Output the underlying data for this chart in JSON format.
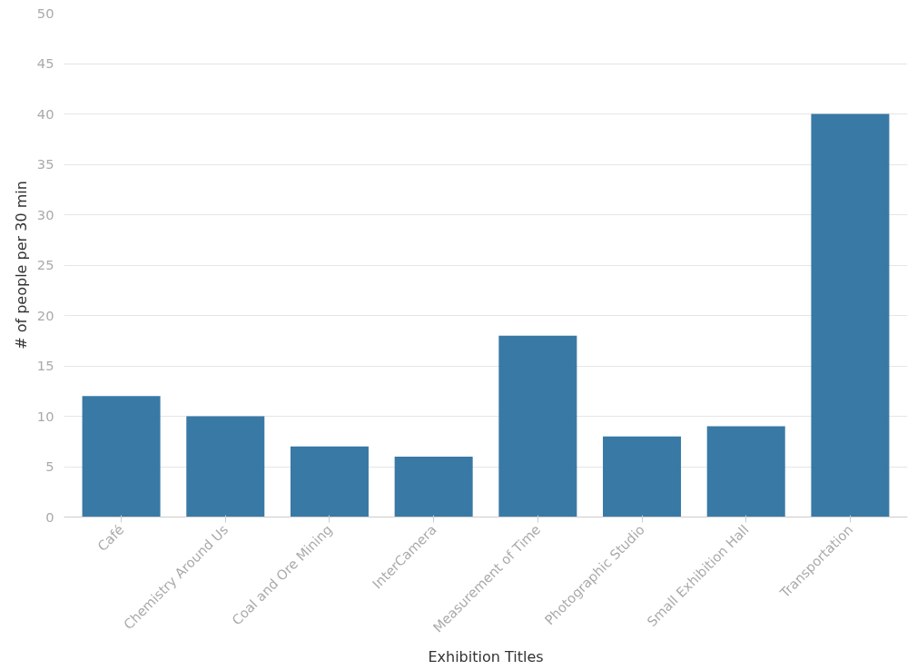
{
  "chart_data": {
    "type": "bar",
    "xlabel": "Exhibition Titles",
    "ylabel": "# of people per 30 min",
    "categories": [
      "Café",
      "Chemistry Around Us",
      "Coal and Ore Mining",
      "InterCamera",
      "Measurement of Time",
      "Photographic Studio",
      "Small Exhibition Hall",
      "Transportation"
    ],
    "values": [
      12,
      10,
      7,
      6,
      18,
      8,
      9,
      40
    ],
    "color": "#2e72a0",
    "ylim": [
      0,
      50
    ],
    "yticks": [
      0,
      5,
      10,
      15,
      20,
      25,
      30,
      35,
      40,
      45,
      50
    ],
    "grid": "y"
  }
}
